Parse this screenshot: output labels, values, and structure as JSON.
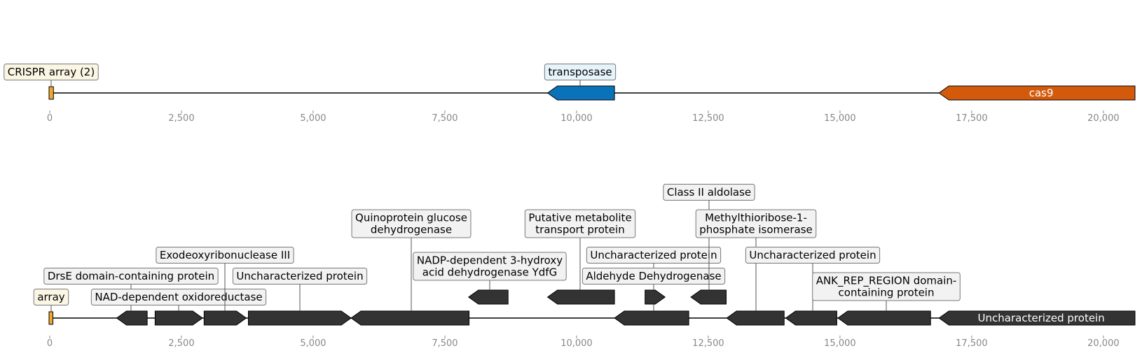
{
  "colors": {
    "crispr_fill": "#F0A830",
    "crispr_box": "#FBF6E4",
    "transposase_fill": "#0A72B8",
    "transposase_box": "#E6F4FA",
    "cas9_fill": "#D45A0B",
    "dark_gene_fill": "#333333",
    "label_box": "#F2F2F2",
    "line": "#000000",
    "tick_text": "#888888"
  },
  "axis": {
    "ticks": [
      0,
      2500,
      5000,
      7500,
      10000,
      12500,
      15000,
      17500,
      20000
    ],
    "tick_labels": [
      "0",
      "2,500",
      "5,000",
      "7,500",
      "10,000",
      "12,500",
      "15,000",
      "17,500",
      "20,000"
    ],
    "domain": [
      0,
      20600
    ]
  },
  "tracks": [
    {
      "id": "top",
      "start": 0,
      "end": 20600,
      "features": [
        {
          "id": "crispr-array",
          "kind": "array",
          "start": 0,
          "end": 70,
          "color": "crispr",
          "label": "CRISPR array (2)"
        },
        {
          "id": "transposase",
          "kind": "gene",
          "start": 9450,
          "end": 10720,
          "strand": -1,
          "color": "transposase",
          "label": "transposase"
        },
        {
          "id": "cas9",
          "kind": "gene",
          "start": 16880,
          "end": 20600,
          "strand": -1,
          "color": "cas9",
          "inner_label": "cas9"
        }
      ]
    },
    {
      "id": "bottom",
      "start": 0,
      "end": 20600,
      "features": [
        {
          "id": "array",
          "kind": "array",
          "start": 0,
          "end": 60,
          "color": "crispr",
          "label": "array"
        },
        {
          "id": "drse",
          "kind": "gene",
          "start": 1270,
          "end": 1850,
          "strand": -1,
          "color": "dark",
          "label": "DrsE domain-containing protein"
        },
        {
          "id": "nad-oxidoreductase",
          "kind": "gene",
          "start": 2000,
          "end": 2900,
          "strand": 1,
          "color": "dark",
          "label": "NAD-dependent oxidoreductase"
        },
        {
          "id": "exodeoxyribonuclease",
          "kind": "gene",
          "start": 2930,
          "end": 3730,
          "strand": 1,
          "color": "dark",
          "label": "Exodeoxyribonuclease III"
        },
        {
          "id": "uncharacterized-1",
          "kind": "gene",
          "start": 3770,
          "end": 5720,
          "strand": 1,
          "color": "dark",
          "label": "Uncharacterized protein"
        },
        {
          "id": "quinoprotein",
          "kind": "gene",
          "start": 5720,
          "end": 7960,
          "strand": -1,
          "color": "dark",
          "label": "Quinoprotein glucose dehydrogenase"
        },
        {
          "id": "nadp-ydfg",
          "kind": "gene",
          "start": 7950,
          "end": 8700,
          "strand": -1,
          "color": "dark",
          "lane": 1,
          "label": "NADP-dependent 3-hydroxy acid dehydrogenase YdfG"
        },
        {
          "id": "putative-metabolite",
          "kind": "gene",
          "start": 9450,
          "end": 10720,
          "strand": -1,
          "color": "dark",
          "lane": 1,
          "label": "Putative metabolite transport protein"
        },
        {
          "id": "uncharacterized-2",
          "kind": "gene",
          "start": 10720,
          "end": 12130,
          "strand": -1,
          "color": "dark",
          "label": "Uncharacterized protein"
        },
        {
          "id": "aldehyde-dh",
          "kind": "gene",
          "start": 11300,
          "end": 11680,
          "strand": 1,
          "color": "dark",
          "lane": 1,
          "label": "Aldehyde Dehydrogenase"
        },
        {
          "id": "class2-aldolase",
          "kind": "gene",
          "start": 12170,
          "end": 12840,
          "strand": -1,
          "color": "dark",
          "lane": 1,
          "label": "Class II aldolase"
        },
        {
          "id": "methylthioribose",
          "kind": "gene",
          "start": 12850,
          "end": 13940,
          "strand": -1,
          "color": "dark",
          "label": "Methylthioribose-1-phosphate isomerase"
        },
        {
          "id": "uncharacterized-3",
          "kind": "gene",
          "start": 13970,
          "end": 14940,
          "strand": -1,
          "color": "dark",
          "label": "Uncharacterized protein"
        },
        {
          "id": "ank-rep",
          "kind": "gene",
          "start": 14960,
          "end": 16720,
          "strand": -1,
          "color": "dark",
          "label": "ANK_REP_REGION domain-containing protein"
        },
        {
          "id": "uncharacterized-4",
          "kind": "gene",
          "start": 16880,
          "end": 20600,
          "strand": -1,
          "color": "dark",
          "inner_label": "Uncharacterized protein"
        }
      ]
    }
  ]
}
